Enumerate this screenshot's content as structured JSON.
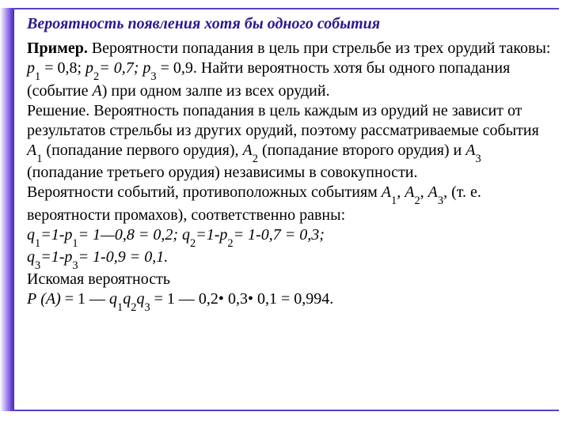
{
  "doc": {
    "title": "Вероятность появления хотя бы одного события",
    "example_label": "Пример.",
    "p1": " Вероятности попадания в цель при стрельбе из трех орудий таковы: ",
    "p1v": "p",
    "p1eq": " = 0,8; ",
    "p2v": "p",
    "p2eq": "= 0,7; ",
    "p3v": "p",
    "p3eq": " = 0,9. Найти вероятность хотя бы одного попадания (событие ",
    "eventA": "А",
    "p1end": ") при одном залпе из всех орудий.",
    "sol1": "Решение. Вероятность попадания в цель каждым из орудий не зависит от результатов стрельбы из других орудий, поэтому рассматриваемые события ",
    "A": "А",
    "A1txt": " (попадание первого орудия), ",
    "A2txt": " (попадание второго орудия) и ",
    "A3txt": " (попадание третьего орудия) независимы в совокупности.",
    "sol2a": "Вероятности событий, противоположных событиям ",
    "comma": ", ",
    "sol2b": "  (т. е. вероятности промахов), соответственно равны:",
    "q1a": "q",
    "q1b": "=1-",
    "q1c": "p",
    "q1d": "= 1—0,8 = 0,2;  ",
    "q2a": "q",
    "q2b": "=1-",
    "q2c": "p",
    "q2d": "= 1-0,7 = 0,3;",
    "q3a": "q",
    "q3b": "=1-",
    "q3c": "p",
    "q3d": "= 1-0,9 = 0,1.",
    "fin1": " Искомая вероятность",
    "fin2a": "Р (А)",
    "fin2b": " = 1 — ",
    "fin2c": "q",
    "fin2d": " = 1 — 0,2• 0,3• 0,1 = 0,994.",
    "sub1": "1",
    "sub2": "2",
    "sub3": "3",
    "colors": {
      "title": "#2a1a8f",
      "text": "#000000",
      "border": "#5a3fc4",
      "grad_light": "#c6b5f7",
      "grad_dark": "#3f2fa9",
      "bg": "#ffffff"
    },
    "font": {
      "family": "Times New Roman",
      "size_pt": 15,
      "title_bold": true,
      "title_italic": true
    }
  }
}
